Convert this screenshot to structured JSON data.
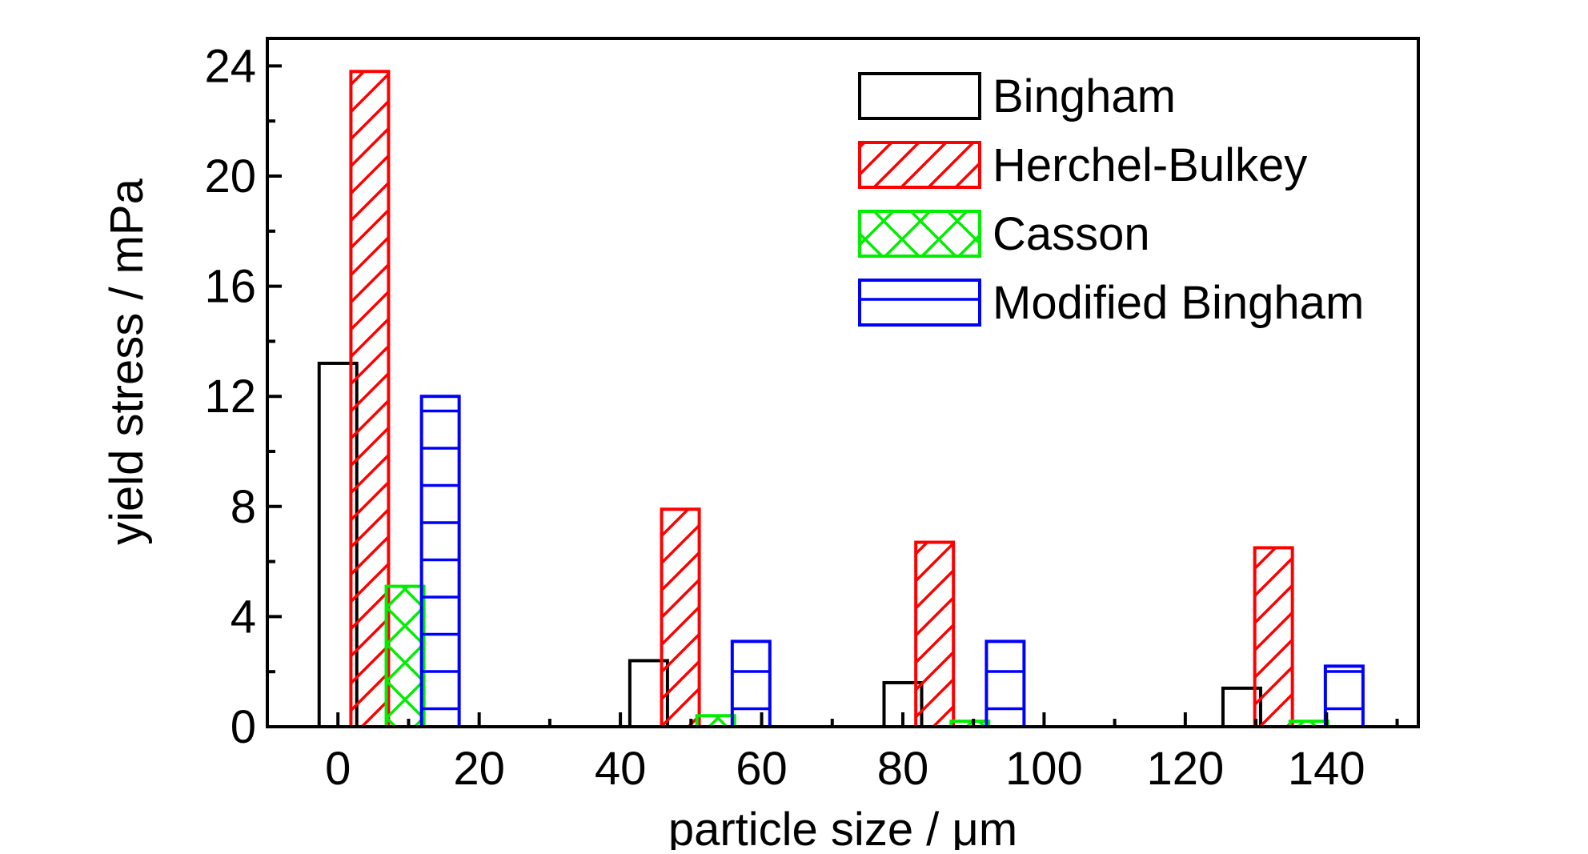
{
  "chart_data": {
    "type": "bar",
    "x_values": [
      0,
      40,
      80,
      140
    ],
    "x_ticks": [
      "0",
      "20",
      "40",
      "60",
      "80",
      "100",
      "120",
      "140"
    ],
    "y_ticks": [
      "0",
      "4",
      "8",
      "12",
      "16",
      "20",
      "24"
    ],
    "xlabel": "particle size / μm",
    "ylabel": "yield stress / mPa",
    "xlim": [
      -10,
      153
    ],
    "ylim": [
      0,
      25
    ],
    "grid": false,
    "legend_position": "top-right",
    "series": [
      {
        "name": "Bingham",
        "color": "#000000",
        "pattern": "none",
        "points": [
          {
            "x": 0,
            "y": 13.2
          },
          {
            "x": 44,
            "y": 2.4
          },
          {
            "x": 80,
            "y": 1.6
          },
          {
            "x": 128,
            "y": 1.4
          }
        ]
      },
      {
        "name": "Herchel-Bulkey",
        "color": "#ff0000",
        "pattern": "diagonal",
        "points": [
          {
            "x": 4.5,
            "y": 23.8
          },
          {
            "x": 48.5,
            "y": 7.9
          },
          {
            "x": 84.5,
            "y": 6.7
          },
          {
            "x": 132.5,
            "y": 6.5
          }
        ]
      },
      {
        "name": "Casson",
        "color": "#00ee00",
        "pattern": "crosshatch",
        "points": [
          {
            "x": 9.5,
            "y": 5.1
          },
          {
            "x": 53.5,
            "y": 0.4
          },
          {
            "x": 89.5,
            "y": 0.2
          },
          {
            "x": 137.5,
            "y": 0.2
          }
        ]
      },
      {
        "name": "Modified Bingham",
        "color": "#0000ff",
        "pattern": "horizontal",
        "points": [
          {
            "x": 14.5,
            "y": 12.0
          },
          {
            "x": 58.5,
            "y": 3.1
          },
          {
            "x": 94.5,
            "y": 3.1
          },
          {
            "x": 142.5,
            "y": 2.2
          }
        ]
      }
    ]
  }
}
